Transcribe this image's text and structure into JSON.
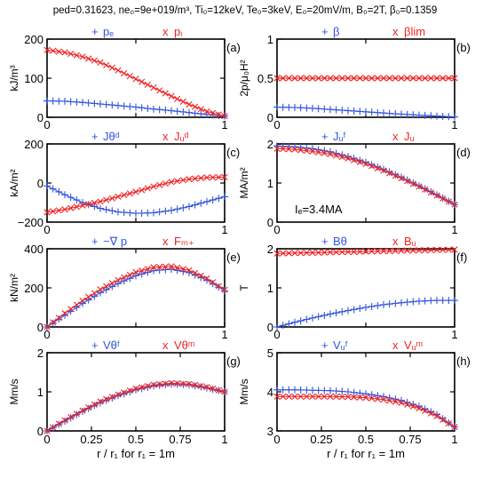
{
  "title": "ped=0.31623, ne₀=9e+019/m³, Ti₀=12keV, Te₀=3keV, E₀=20mV/m, B₀=2T, β₀=0.1359",
  "colors": {
    "blue": "#3355dd",
    "red": "#ee2222",
    "axis": "#000000"
  },
  "chart_data": [
    {
      "type": "scatter",
      "panel_label": "(a)",
      "ylabel": "kJ/m³",
      "xlim": [
        0,
        1
      ],
      "ylim": [
        0,
        200
      ],
      "yticks": [
        "0",
        "100",
        "200"
      ],
      "series": [
        {
          "name": "pₑ",
          "marker": "+",
          "color": "#3355dd",
          "x": [
            0,
            0.1,
            0.2,
            0.3,
            0.4,
            0.5,
            0.6,
            0.7,
            0.8,
            0.9,
            1.0
          ],
          "y": [
            42,
            41,
            38,
            34,
            30,
            26,
            21,
            17,
            12,
            7,
            3
          ]
        },
        {
          "name": "pᵢ",
          "marker": "x",
          "color": "#ee2222",
          "x": [
            0,
            0.1,
            0.2,
            0.3,
            0.4,
            0.5,
            0.6,
            0.7,
            0.8,
            0.9,
            1.0
          ],
          "y": [
            172,
            166,
            155,
            140,
            120,
            98,
            76,
            54,
            33,
            15,
            3
          ]
        }
      ]
    },
    {
      "type": "scatter",
      "panel_label": "(b)",
      "ylabel": "2p/μ₀H²",
      "xlim": [
        0,
        1
      ],
      "ylim": [
        0,
        1
      ],
      "yticks": [
        "0",
        "0.5",
        "1"
      ],
      "series": [
        {
          "name": "β",
          "marker": "+",
          "color": "#3355dd",
          "x": [
            0,
            0.1,
            0.2,
            0.3,
            0.4,
            0.5,
            0.6,
            0.7,
            0.8,
            0.9,
            1.0
          ],
          "y": [
            0.13,
            0.125,
            0.115,
            0.1,
            0.085,
            0.07,
            0.055,
            0.04,
            0.028,
            0.015,
            0.005
          ]
        },
        {
          "name": "βlim",
          "marker": "x",
          "color": "#ee2222",
          "x": [
            0,
            0.1,
            0.2,
            0.3,
            0.4,
            0.5,
            0.6,
            0.7,
            0.8,
            0.9,
            1.0
          ],
          "y": [
            0.5,
            0.5,
            0.5,
            0.5,
            0.5,
            0.5,
            0.5,
            0.5,
            0.5,
            0.5,
            0.5
          ]
        }
      ]
    },
    {
      "type": "scatter",
      "panel_label": "(c)",
      "ylabel": "kA/m²",
      "xlim": [
        0,
        1
      ],
      "ylim": [
        -200,
        200
      ],
      "yticks": [
        "−200",
        "0",
        "200"
      ],
      "series": [
        {
          "name": "Jθᵈ",
          "marker": "+",
          "color": "#3355dd",
          "x": [
            0,
            0.1,
            0.2,
            0.3,
            0.4,
            0.5,
            0.6,
            0.7,
            0.8,
            0.9,
            1.0
          ],
          "y": [
            -15,
            -60,
            -100,
            -130,
            -148,
            -155,
            -152,
            -140,
            -120,
            -95,
            -70
          ]
        },
        {
          "name": "Jᵤᵈ",
          "marker": "x",
          "color": "#ee2222",
          "x": [
            0,
            0.1,
            0.2,
            0.3,
            0.4,
            0.5,
            0.6,
            0.7,
            0.8,
            0.9,
            1.0
          ],
          "y": [
            -150,
            -135,
            -115,
            -95,
            -70,
            -45,
            -18,
            5,
            20,
            28,
            30
          ]
        }
      ]
    },
    {
      "type": "scatter",
      "panel_label": "(d)",
      "ylabel": "MA/m²",
      "annotation": "Iₑ=3.4MA",
      "xlim": [
        0,
        1
      ],
      "ylim": [
        0,
        2
      ],
      "yticks": [
        "0",
        "1",
        "2"
      ],
      "series": [
        {
          "name": "Jᵤᶠ",
          "marker": "+",
          "color": "#3355dd",
          "x": [
            0,
            0.1,
            0.2,
            0.3,
            0.4,
            0.5,
            0.6,
            0.7,
            0.8,
            0.9,
            1.0
          ],
          "y": [
            1.95,
            1.93,
            1.88,
            1.8,
            1.68,
            1.53,
            1.35,
            1.15,
            0.93,
            0.7,
            0.45
          ]
        },
        {
          "name": "Jᵤ",
          "marker": "x",
          "color": "#ee2222",
          "x": [
            0,
            0.1,
            0.2,
            0.3,
            0.4,
            0.5,
            0.6,
            0.7,
            0.8,
            0.9,
            1.0
          ],
          "y": [
            1.88,
            1.86,
            1.81,
            1.74,
            1.63,
            1.49,
            1.32,
            1.12,
            0.91,
            0.68,
            0.45
          ]
        }
      ]
    },
    {
      "type": "scatter",
      "panel_label": "(e)",
      "ylabel": "kN/m²",
      "xlim": [
        0,
        1
      ],
      "ylim": [
        0,
        400
      ],
      "yticks": [
        "0",
        "200",
        "400"
      ],
      "series": [
        {
          "name": "−∇ p",
          "marker": "+",
          "color": "#3355dd",
          "x": [
            0,
            0.1,
            0.2,
            0.3,
            0.4,
            0.5,
            0.6,
            0.7,
            0.8,
            0.9,
            1.0
          ],
          "y": [
            0,
            60,
            120,
            175,
            222,
            262,
            288,
            295,
            278,
            240,
            185
          ]
        },
        {
          "name": "Fₘ₊",
          "marker": "x",
          "color": "#ee2222",
          "x": [
            0,
            0.1,
            0.2,
            0.3,
            0.4,
            0.5,
            0.6,
            0.7,
            0.8,
            0.9,
            1.0
          ],
          "y": [
            0,
            70,
            135,
            192,
            240,
            280,
            305,
            310,
            290,
            248,
            190
          ]
        }
      ]
    },
    {
      "type": "scatter",
      "panel_label": "(f)",
      "ylabel": "T",
      "xlim": [
        0,
        1
      ],
      "ylim": [
        0,
        2
      ],
      "yticks": [
        "0",
        "1",
        "2"
      ],
      "series": [
        {
          "name": "Bθ",
          "marker": "+",
          "color": "#3355dd",
          "x": [
            0,
            0.1,
            0.2,
            0.3,
            0.4,
            0.5,
            0.6,
            0.7,
            0.8,
            0.9,
            1.0
          ],
          "y": [
            0.0,
            0.12,
            0.23,
            0.33,
            0.42,
            0.5,
            0.57,
            0.62,
            0.66,
            0.68,
            0.68
          ]
        },
        {
          "name": "Bᵤ",
          "marker": "x",
          "color": "#ee2222",
          "x": [
            0,
            0.1,
            0.2,
            0.3,
            0.4,
            0.5,
            0.6,
            0.7,
            0.8,
            0.9,
            1.0
          ],
          "y": [
            1.88,
            1.89,
            1.9,
            1.91,
            1.92,
            1.93,
            1.94,
            1.95,
            1.96,
            1.97,
            1.98
          ]
        }
      ]
    },
    {
      "type": "scatter",
      "panel_label": "(g)",
      "ylabel": "Mm/s",
      "xlabel": "r / r₁ for r₁ = 1m",
      "xlim": [
        0,
        1
      ],
      "ylim": [
        0,
        2
      ],
      "yticks": [
        "0",
        "1",
        "2"
      ],
      "xticks": [
        "0",
        "0.25",
        "0.5",
        "0.75",
        "1"
      ],
      "series": [
        {
          "name": "Vθᶠ",
          "marker": "+",
          "color": "#3355dd",
          "x": [
            0,
            0.1,
            0.2,
            0.3,
            0.4,
            0.5,
            0.6,
            0.7,
            0.8,
            0.9,
            1.0
          ],
          "y": [
            0.0,
            0.25,
            0.5,
            0.72,
            0.9,
            1.05,
            1.15,
            1.2,
            1.18,
            1.1,
            1.0
          ]
        },
        {
          "name": "Vθᵐ",
          "marker": "x",
          "color": "#ee2222",
          "x": [
            0,
            0.1,
            0.2,
            0.3,
            0.4,
            0.5,
            0.6,
            0.7,
            0.8,
            0.9,
            1.0
          ],
          "y": [
            0.0,
            0.27,
            0.52,
            0.75,
            0.93,
            1.08,
            1.18,
            1.22,
            1.2,
            1.12,
            1.0
          ]
        }
      ]
    },
    {
      "type": "scatter",
      "panel_label": "(h)",
      "ylabel": "Mm/s",
      "xlabel": "r / r₁ for r₁ = 1m",
      "xlim": [
        0,
        1
      ],
      "ylim": [
        3,
        5
      ],
      "yticks": [
        "3",
        "4",
        "5"
      ],
      "xticks": [
        "0",
        "0.25",
        "0.5",
        "0.75",
        "1"
      ],
      "series": [
        {
          "name": "Vᵤᶠ",
          "marker": "+",
          "color": "#3355dd",
          "x": [
            0,
            0.1,
            0.2,
            0.3,
            0.4,
            0.5,
            0.6,
            0.7,
            0.8,
            0.9,
            1.0
          ],
          "y": [
            4.05,
            4.05,
            4.04,
            4.03,
            4.0,
            3.95,
            3.88,
            3.78,
            3.63,
            3.42,
            3.1
          ]
        },
        {
          "name": "Vᵤᵐ",
          "marker": "x",
          "color": "#ee2222",
          "x": [
            0,
            0.1,
            0.2,
            0.3,
            0.4,
            0.5,
            0.6,
            0.7,
            0.8,
            0.9,
            1.0
          ],
          "y": [
            3.88,
            3.88,
            3.88,
            3.88,
            3.87,
            3.85,
            3.8,
            3.72,
            3.58,
            3.38,
            3.1
          ]
        }
      ]
    }
  ]
}
